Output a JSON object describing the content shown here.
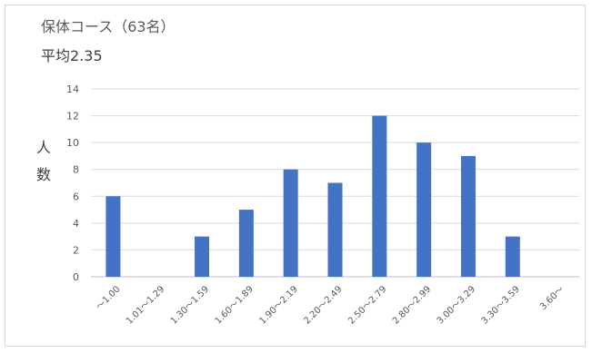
{
  "chart_data": {
    "type": "bar",
    "title": "保体コース（63名）",
    "subtitle": "平均2.35",
    "ylabel": "人数",
    "xlabel": "",
    "ylim": [
      0,
      14
    ],
    "yticks": [
      0,
      2,
      4,
      6,
      8,
      10,
      12,
      14
    ],
    "grid": true,
    "categories": [
      "～1.00",
      "1.01～1.29",
      "1.30～1.59",
      "1.60～1.89",
      "1.90～2.19",
      "2.20～2.49",
      "2.50～2.79",
      "2.80～2.99",
      "3.00～3.29",
      "3.30～3.59",
      "3.60～"
    ],
    "values": [
      6,
      0,
      3,
      5,
      8,
      7,
      12,
      10,
      9,
      3,
      0
    ],
    "colors": {
      "bar": "#4472c4",
      "grid": "#d9d9d9",
      "axis": "#bfbfbf"
    }
  }
}
